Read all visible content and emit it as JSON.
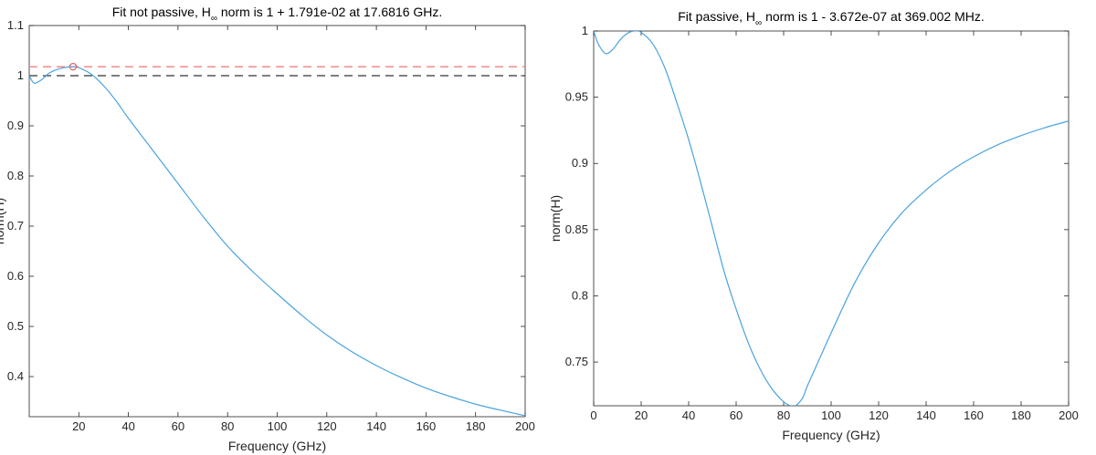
{
  "chart_data": [
    {
      "type": "line",
      "title_parts": {
        "before": "Fit not passive, H",
        "sub": "∞",
        "after": " norm is 1 + 1.791e-02 at 17.6816 GHz."
      },
      "xlabel": "Frequency (GHz)",
      "ylabel": "norm(H)",
      "xlim": [
        0,
        200
      ],
      "ylim": [
        0.32,
        1.1
      ],
      "x_ticks": [
        20,
        40,
        60,
        80,
        100,
        120,
        140,
        160,
        180,
        200
      ],
      "y_ticks": [
        0.4,
        0.5,
        0.6,
        0.7,
        0.8,
        0.9,
        1,
        1.1
      ],
      "series": [
        {
          "name": "norm(H)",
          "color": "#4aa3df",
          "x": [
            0,
            2,
            5,
            8,
            11,
            14,
            17.68,
            20,
            25,
            30,
            35,
            40,
            50,
            60,
            70,
            80,
            90,
            100,
            110,
            120,
            130,
            140,
            150,
            160,
            170,
            180,
            190,
            200
          ],
          "y": [
            1.0,
            0.985,
            0.992,
            1.005,
            1.012,
            1.016,
            1.0179,
            1.016,
            1.003,
            0.98,
            0.95,
            0.915,
            0.85,
            0.785,
            0.72,
            0.66,
            0.61,
            0.565,
            0.522,
            0.483,
            0.45,
            0.422,
            0.398,
            0.377,
            0.36,
            0.345,
            0.333,
            0.322
          ]
        }
      ],
      "reference_lines": [
        {
          "name": "peak level",
          "y": 1.0179,
          "color": "#f08080",
          "style": "dashed"
        },
        {
          "name": "unity",
          "y": 1.0,
          "color": "#555555",
          "style": "dashed"
        }
      ],
      "markers": [
        {
          "name": "peak",
          "x": 17.68,
          "y": 1.0179,
          "color": "#e06060",
          "shape": "circle"
        }
      ]
    },
    {
      "type": "line",
      "title_parts": {
        "before": "Fit passive, H",
        "sub": "∞",
        "after": " norm is 1 - 3.672e-07 at 369.002 MHz."
      },
      "xlabel": "Frequency (GHz)",
      "ylabel": "norm(H)",
      "xlim": [
        0,
        200
      ],
      "ylim": [
        0.717,
        1.0
      ],
      "x_ticks": [
        0,
        20,
        40,
        60,
        80,
        100,
        120,
        140,
        160,
        180,
        200
      ],
      "y_ticks": [
        0.75,
        0.8,
        0.85,
        0.9,
        0.95,
        1
      ],
      "series": [
        {
          "name": "norm(H)",
          "color": "#4aa3df",
          "x": [
            0,
            2,
            5,
            8,
            11,
            14,
            17,
            20,
            25,
            30,
            35,
            40,
            45,
            50,
            55,
            60,
            65,
            70,
            75,
            80,
            83,
            85,
            88,
            90,
            95,
            100,
            110,
            120,
            130,
            140,
            150,
            160,
            170,
            180,
            190,
            200
          ],
          "y": [
            1.0,
            0.99,
            0.983,
            0.986,
            0.993,
            0.998,
            1.0,
            0.999,
            0.99,
            0.972,
            0.946,
            0.918,
            0.886,
            0.852,
            0.818,
            0.79,
            0.765,
            0.745,
            0.73,
            0.72,
            0.717,
            0.717,
            0.723,
            0.732,
            0.752,
            0.772,
            0.81,
            0.84,
            0.863,
            0.88,
            0.894,
            0.905,
            0.914,
            0.921,
            0.927,
            0.932
          ]
        }
      ],
      "reference_lines": [],
      "markers": []
    }
  ]
}
